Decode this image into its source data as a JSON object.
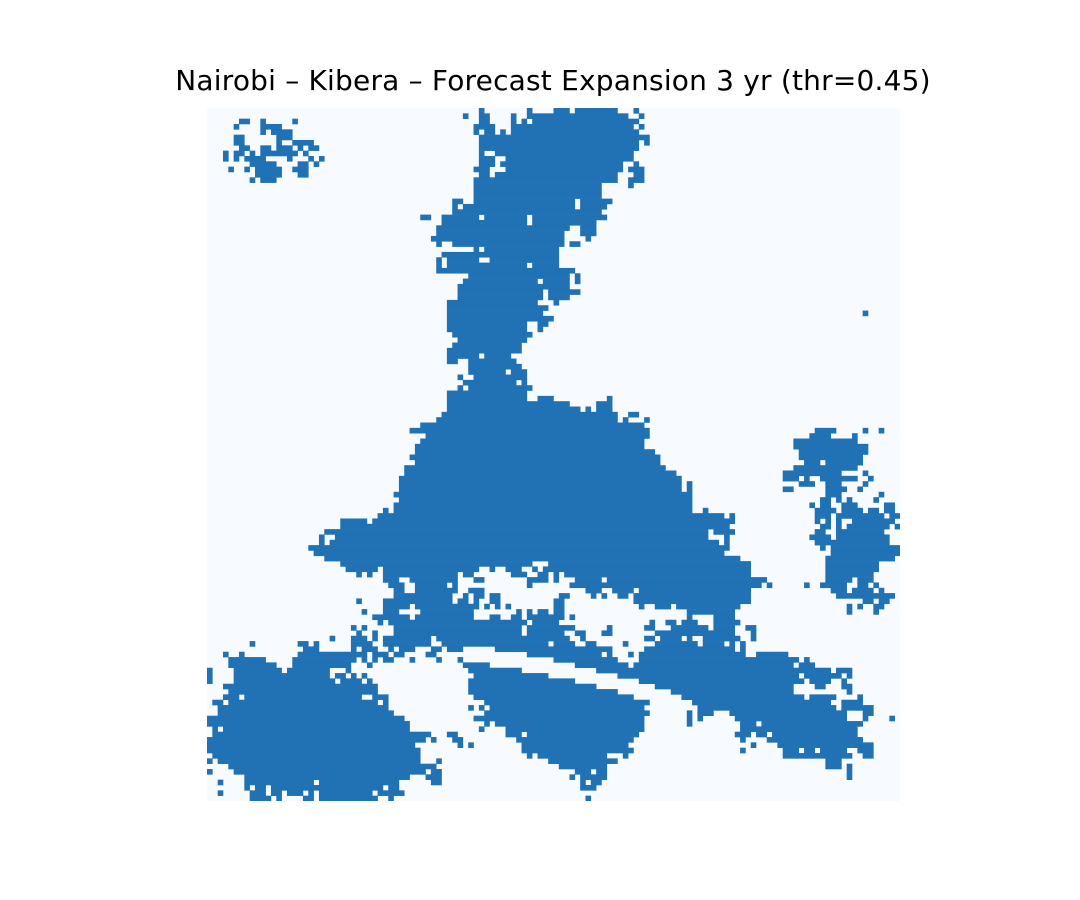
{
  "chart_data": {
    "type": "heatmap",
    "title": "Nairobi – Kibera – Forecast Expansion 3 yr (thr=0.45)",
    "grid": false,
    "axes_visible": false,
    "resolution": [
      130,
      130
    ],
    "values": "binary",
    "value_colors": {
      "0": "#f7fbff",
      "1": "#2171b5"
    },
    "colormap": "Blues",
    "threshold": 0.45
  }
}
